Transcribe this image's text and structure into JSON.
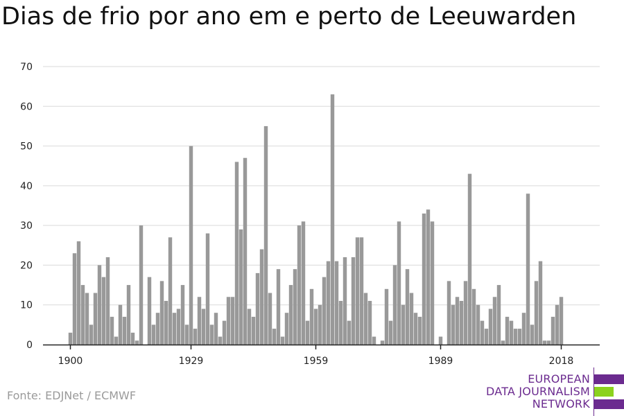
{
  "title": "Dias de frio por ano em e perto de Leeuwarden",
  "source": "Fonte: EDJNet / ECMWF",
  "logo": {
    "line1": "EUROPEAN",
    "line2": "DATA JOURNALISM",
    "line3": "NETWORK",
    "colors": {
      "purple": "#6b2b8f",
      "green": "#8cd21e"
    }
  },
  "chart_data": {
    "type": "bar",
    "title": "Dias de frio por ano em e perto de Leeuwarden",
    "xlabel": "",
    "ylabel": "",
    "ylim": [
      0,
      70
    ],
    "yticks": [
      0,
      10,
      20,
      30,
      40,
      50,
      60,
      70
    ],
    "xticks": [
      "1900",
      "1929",
      "1959",
      "1989",
      "2018"
    ],
    "grid": true,
    "bar_color": "#999999",
    "categories": [
      1900,
      1901,
      1902,
      1903,
      1904,
      1905,
      1906,
      1907,
      1908,
      1909,
      1910,
      1911,
      1912,
      1913,
      1914,
      1915,
      1916,
      1917,
      1918,
      1919,
      1920,
      1921,
      1922,
      1923,
      1924,
      1925,
      1926,
      1927,
      1928,
      1929,
      1930,
      1931,
      1932,
      1933,
      1934,
      1935,
      1936,
      1937,
      1938,
      1939,
      1940,
      1941,
      1942,
      1943,
      1944,
      1945,
      1946,
      1947,
      1948,
      1949,
      1950,
      1951,
      1952,
      1953,
      1954,
      1955,
      1956,
      1957,
      1958,
      1959,
      1960,
      1961,
      1962,
      1963,
      1964,
      1965,
      1966,
      1967,
      1968,
      1969,
      1970,
      1971,
      1972,
      1973,
      1974,
      1975,
      1976,
      1977,
      1978,
      1979,
      1980,
      1981,
      1982,
      1983,
      1984,
      1985,
      1986,
      1987,
      1988,
      1989,
      1990,
      1991,
      1992,
      1993,
      1994,
      1995,
      1996,
      1997,
      1998,
      1999,
      2000,
      2001,
      2002,
      2003,
      2004,
      2005,
      2006,
      2007,
      2008,
      2009,
      2010,
      2011,
      2012,
      2013,
      2014,
      2015,
      2016,
      2017,
      2018
    ],
    "values": [
      3,
      23,
      26,
      15,
      13,
      5,
      13,
      20,
      17,
      22,
      7,
      2,
      10,
      7,
      15,
      3,
      1,
      30,
      0,
      17,
      5,
      8,
      16,
      11,
      27,
      8,
      9,
      15,
      5,
      50,
      4,
      12,
      9,
      28,
      5,
      8,
      2,
      6,
      12,
      12,
      46,
      29,
      47,
      9,
      7,
      18,
      24,
      55,
      13,
      4,
      19,
      2,
      8,
      15,
      19,
      30,
      31,
      6,
      14,
      9,
      10,
      17,
      21,
      63,
      21,
      11,
      22,
      6,
      22,
      27,
      27,
      13,
      11,
      2,
      0,
      1,
      14,
      6,
      20,
      31,
      10,
      19,
      13,
      8,
      7,
      33,
      34,
      31,
      0,
      2,
      0,
      16,
      10,
      12,
      11,
      16,
      43,
      14,
      10,
      6,
      4,
      9,
      12,
      15,
      1,
      7,
      6,
      4,
      4,
      8,
      38,
      5,
      16,
      21,
      1,
      1,
      7,
      10,
      12
    ]
  }
}
